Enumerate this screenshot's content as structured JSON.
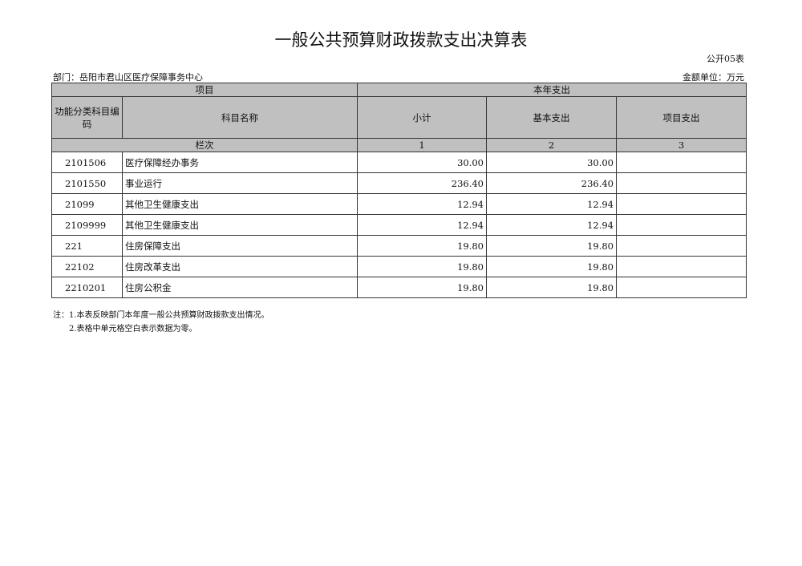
{
  "title": "一般公共预算财政拨款支出决算表",
  "form_code": "公开05表",
  "department": "部门：岳阳市君山区医疗保障事务中心",
  "unit": "金额单位：万元",
  "headers": {
    "project": "项目",
    "current_year": "本年支出",
    "code": "功能分类科目编码",
    "name": "科目名称",
    "subtotal": "小计",
    "basic": "基本支出",
    "project_exp": "项目支出",
    "column_index": "栏次",
    "idx1": "1",
    "idx2": "2",
    "idx3": "3"
  },
  "rows": [
    {
      "code": "2101506",
      "name": "医疗保障经办事务",
      "subtotal": "30.00",
      "basic": "30.00",
      "project": ""
    },
    {
      "code": "2101550",
      "name": "事业运行",
      "subtotal": "236.40",
      "basic": "236.40",
      "project": ""
    },
    {
      "code": "21099",
      "name": "其他卫生健康支出",
      "subtotal": "12.94",
      "basic": "12.94",
      "project": ""
    },
    {
      "code": "2109999",
      "name": "其他卫生健康支出",
      "subtotal": "12.94",
      "basic": "12.94",
      "project": ""
    },
    {
      "code": "221",
      "name": "住房保障支出",
      "subtotal": "19.80",
      "basic": "19.80",
      "project": ""
    },
    {
      "code": "22102",
      "name": "住房改革支出",
      "subtotal": "19.80",
      "basic": "19.80",
      "project": ""
    },
    {
      "code": "2210201",
      "name": "住房公积金",
      "subtotal": "19.80",
      "basic": "19.80",
      "project": ""
    }
  ],
  "notes": [
    "注：1.本表反映部门本年度一般公共预算财政拨款支出情况。",
    "2.表格中单元格空白表示数据为零。"
  ]
}
